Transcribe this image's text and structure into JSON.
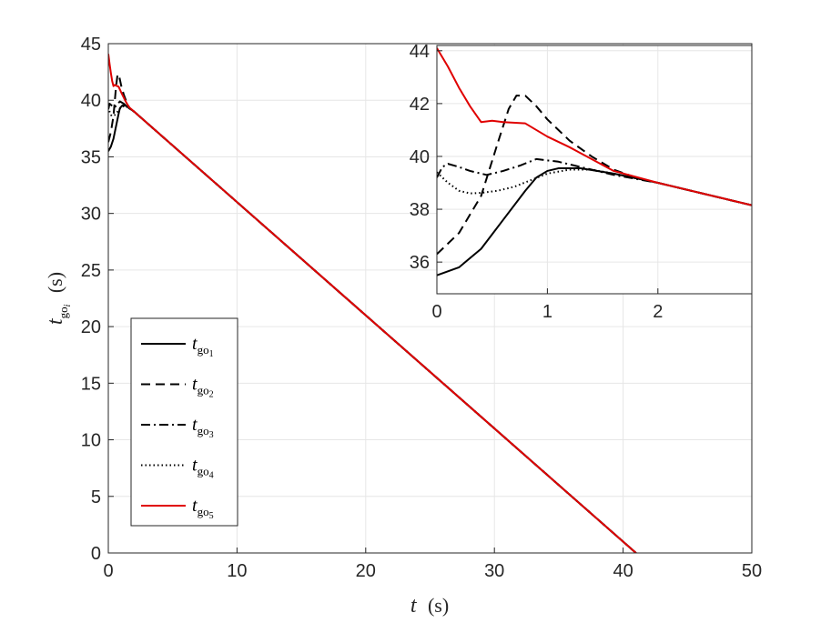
{
  "chart_data": [
    {
      "type": "line",
      "id": "main",
      "xlabel": {
        "symbol": "t",
        "unit": "(s)"
      },
      "ylabel": {
        "symbol": "t",
        "sub": "go",
        "subsub": "i",
        "unit": "(s)"
      },
      "xlim": [
        0,
        50
      ],
      "ylim": [
        0,
        45
      ],
      "xticks": [
        0,
        10,
        20,
        30,
        40,
        50
      ],
      "yticks": [
        0,
        5,
        10,
        15,
        20,
        25,
        30,
        35,
        40,
        45
      ],
      "grid": true,
      "legend_position": "bottom-left",
      "series": [
        {
          "name": "t_go1",
          "label_main": "t",
          "label_sub": "go",
          "label_index": "1",
          "style": "solid",
          "color": "#000000",
          "x": [
            0,
            0.2,
            0.4,
            0.6,
            0.8,
            0.9,
            1.1,
            1.4,
            1.6,
            2,
            41.0
          ],
          "y": [
            35.5,
            35.9,
            36.6,
            37.7,
            38.8,
            39.3,
            39.55,
            39.5,
            39.35,
            39.0,
            0
          ]
        },
        {
          "name": "t_go2",
          "label_main": "t",
          "label_sub": "go",
          "label_index": "2",
          "style": "dashed",
          "color": "#000000",
          "x": [
            0,
            0.2,
            0.4,
            0.6,
            0.72,
            0.85,
            1.0,
            1.2,
            1.5,
            1.7,
            2,
            41.0
          ],
          "y": [
            36.3,
            37.2,
            38.6,
            41.2,
            42.3,
            42.1,
            41.3,
            40.5,
            39.6,
            39.25,
            39.0,
            0
          ]
        },
        {
          "name": "t_go3",
          "label_main": "t",
          "label_sub": "go",
          "label_index": "3",
          "style": "dashdot",
          "color": "#000000",
          "x": [
            0,
            0.1,
            0.3,
            0.45,
            0.6,
            0.9,
            1.2,
            1.6,
            2,
            41.0
          ],
          "y": [
            39.2,
            39.7,
            39.5,
            39.35,
            39.5,
            39.9,
            39.7,
            39.3,
            39.0,
            0
          ]
        },
        {
          "name": "t_go4",
          "label_main": "t",
          "label_sub": "go",
          "label_index": "4",
          "style": "dotted",
          "color": "#000000",
          "x": [
            0,
            0.1,
            0.2,
            0.3,
            0.5,
            0.8,
            1.0,
            1.3,
            1.6,
            2,
            41.0
          ],
          "y": [
            39.4,
            39.0,
            38.7,
            38.6,
            38.7,
            39.1,
            39.4,
            39.5,
            39.3,
            39.0,
            0
          ]
        },
        {
          "name": "t_go5",
          "label_main": "t",
          "label_sub": "go",
          "label_index": "5",
          "style": "solid",
          "color": "#e00000",
          "x": [
            0,
            0.1,
            0.2,
            0.3,
            0.4,
            0.5,
            0.6,
            0.8,
            1.0,
            1.3,
            1.6,
            2,
            41.0
          ],
          "y": [
            44.1,
            43.2,
            42.4,
            41.7,
            41.25,
            41.35,
            41.3,
            41.2,
            40.7,
            40.0,
            39.4,
            39.0,
            0
          ]
        }
      ]
    },
    {
      "type": "line",
      "id": "inset",
      "xlim": [
        0,
        2.85
      ],
      "ylim": [
        34.8,
        44.2
      ],
      "xticks": [
        0,
        1,
        2
      ],
      "yticks": [
        36,
        38,
        40,
        42,
        44
      ],
      "grid": true,
      "series": [
        {
          "name": "t_go1",
          "style": "solid",
          "color": "#000000",
          "x": [
            0,
            0.2,
            0.4,
            0.6,
            0.8,
            0.9,
            1.0,
            1.1,
            1.3,
            1.6,
            2.0,
            2.4,
            2.85
          ],
          "y": [
            35.5,
            35.8,
            36.5,
            37.6,
            38.7,
            39.2,
            39.45,
            39.55,
            39.55,
            39.35,
            39.0,
            38.6,
            38.15
          ]
        },
        {
          "name": "t_go2",
          "style": "dashed",
          "color": "#000000",
          "x": [
            0,
            0.2,
            0.4,
            0.55,
            0.65,
            0.72,
            0.8,
            0.9,
            1.0,
            1.2,
            1.4,
            1.6,
            1.8,
            2.0,
            2.4,
            2.85
          ],
          "y": [
            36.3,
            37.1,
            38.5,
            40.5,
            41.8,
            42.3,
            42.3,
            41.9,
            41.4,
            40.6,
            40.0,
            39.5,
            39.2,
            39.0,
            38.6,
            38.15
          ]
        },
        {
          "name": "t_go3",
          "style": "dashdot",
          "color": "#000000",
          "x": [
            0,
            0.05,
            0.1,
            0.2,
            0.3,
            0.45,
            0.6,
            0.75,
            0.9,
            1.1,
            1.3,
            1.6,
            2.0,
            2.4,
            2.85
          ],
          "y": [
            39.2,
            39.6,
            39.72,
            39.6,
            39.45,
            39.3,
            39.45,
            39.65,
            39.9,
            39.8,
            39.6,
            39.3,
            39.0,
            38.6,
            38.15
          ]
        },
        {
          "name": "t_go4",
          "style": "dotted",
          "color": "#000000",
          "x": [
            0,
            0.1,
            0.2,
            0.3,
            0.4,
            0.55,
            0.7,
            0.85,
            1.0,
            1.2,
            1.4,
            1.6,
            2.0,
            2.4,
            2.85
          ],
          "y": [
            39.4,
            39.0,
            38.7,
            38.6,
            38.62,
            38.7,
            38.85,
            39.1,
            39.35,
            39.5,
            39.5,
            39.35,
            39.0,
            38.6,
            38.15
          ]
        },
        {
          "name": "t_go5",
          "style": "solid",
          "color": "#e00000",
          "x": [
            0,
            0.1,
            0.2,
            0.3,
            0.4,
            0.5,
            0.6,
            0.8,
            0.9,
            1.0,
            1.2,
            1.4,
            1.6,
            2.0,
            2.4,
            2.85
          ],
          "y": [
            44.1,
            43.4,
            42.6,
            41.9,
            41.3,
            41.35,
            41.3,
            41.25,
            41.0,
            40.75,
            40.35,
            39.9,
            39.45,
            39.0,
            38.6,
            38.15
          ]
        }
      ]
    }
  ]
}
